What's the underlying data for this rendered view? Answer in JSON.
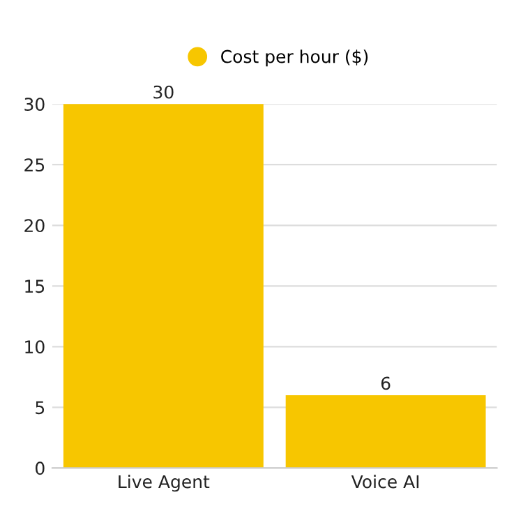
{
  "chart_data": {
    "type": "bar",
    "categories": [
      "Live Agent",
      "Voice AI"
    ],
    "series": [
      {
        "name": "Cost per hour ($)",
        "color": "#f7c600",
        "values": [
          30,
          6
        ]
      }
    ],
    "ylim": [
      0,
      30
    ],
    "yticks": [
      0,
      5,
      10,
      15,
      20,
      25,
      30
    ],
    "grid": "y",
    "legend": "top",
    "data_labels": true
  }
}
